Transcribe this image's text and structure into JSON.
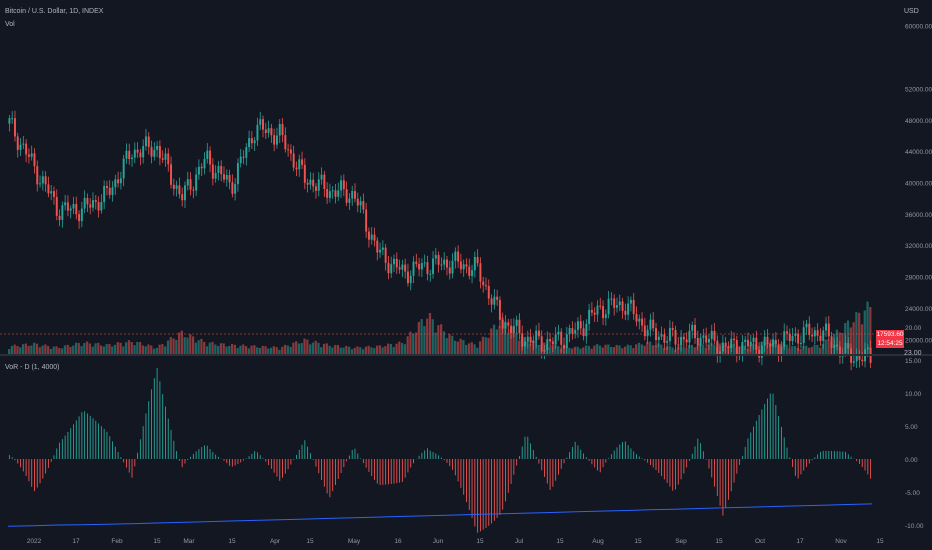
{
  "header": {
    "symbol_line": "Bitcoin / U.S. Dollar, 1D, INDEX",
    "indicator_label": "Vol"
  },
  "price_axis": {
    "currency": "USD",
    "labels": [
      "60000.00",
      "52000.00",
      "48000.00",
      "44000.00",
      "40000.00",
      "36000.00",
      "32000.00",
      "28000.00",
      "24000.00",
      "20000.00"
    ]
  },
  "last_price": {
    "price": "17593.60",
    "countdown": "12:54:25"
  },
  "divider_label": "23.00",
  "sub_pane": {
    "title": "VoR - D (1, 4000)",
    "labels": [
      "20.00",
      "15.00",
      "10.00",
      "5.00",
      "0.00",
      "-5.00",
      "-10.00",
      "-15.00"
    ]
  },
  "time_axis": {
    "labels": [
      "2022",
      "17",
      "Feb",
      "15",
      "Mar",
      "15",
      "Apr",
      "15",
      "May",
      "16",
      "Jun",
      "15",
      "Jul",
      "15",
      "Aug",
      "15",
      "Sep",
      "15",
      "Oct",
      "17",
      "Nov",
      "15"
    ]
  },
  "colors": {
    "up": "#26a69a",
    "down": "#ef5350",
    "line": "#2962ff",
    "bg": "#131722"
  },
  "chart_data": [
    {
      "type": "candlestick",
      "title": "Bitcoin / U.S. Dollar, 1D, INDEX",
      "ylabel": "USD",
      "ylim": [
        18000,
        62000
      ],
      "x": [
        "2022-01-01",
        "2022-01-10",
        "2022-01-20",
        "2022-01-24",
        "2022-02-01",
        "2022-02-10",
        "2022-02-15",
        "2022-02-24",
        "2022-03-01",
        "2022-03-15",
        "2022-03-28",
        "2022-04-04",
        "2022-04-15",
        "2022-04-25",
        "2022-05-01",
        "2022-05-09",
        "2022-05-12",
        "2022-05-20",
        "2022-06-01",
        "2022-06-10",
        "2022-06-13",
        "2022-06-18",
        "2022-07-01",
        "2022-07-15",
        "2022-07-29",
        "2022-08-10",
        "2022-08-19",
        "2022-09-01",
        "2022-09-13",
        "2022-09-20",
        "2022-10-01",
        "2022-10-15",
        "2022-10-25",
        "2022-11-05",
        "2022-11-09",
        "2022-11-14"
      ],
      "close": [
        47500,
        42000,
        36500,
        36600,
        38500,
        44000,
        44500,
        38000,
        43000,
        39500,
        47000,
        46000,
        40500,
        39000,
        38500,
        31000,
        28500,
        29500,
        29800,
        29000,
        22500,
        20000,
        19500,
        21000,
        24000,
        24500,
        21000,
        20000,
        20500,
        19000,
        19300,
        19200,
        20500,
        21000,
        18000,
        17594
      ]
    },
    {
      "type": "bar",
      "title": "Vol",
      "description_series": "daily volume, 0-1 relative",
      "values": [
        0.35,
        0.45,
        0.3,
        0.5,
        0.4,
        0.55,
        0.3,
        0.9,
        0.5,
        0.4,
        0.35,
        0.3,
        0.6,
        0.4,
        0.3,
        0.35,
        0.5,
        1.6,
        0.7,
        0.4,
        1.4,
        0.6,
        0.4,
        0.3,
        0.4,
        0.35,
        0.5,
        0.3,
        0.4,
        0.45,
        0.35,
        0.6,
        0.3,
        0.4,
        1.2,
        2.0
      ]
    },
    {
      "type": "bar",
      "title": "VoR - D (1, 4000)",
      "ylim": [
        -18,
        22
      ],
      "values": [
        2,
        -9,
        3,
        8,
        4,
        -3,
        16,
        -2,
        5,
        -3,
        2,
        -4,
        3,
        -6,
        2,
        -5,
        -6,
        5,
        -3,
        -15,
        -9,
        4,
        -5,
        3,
        -3,
        6,
        -2,
        -8,
        4,
        -9,
        3,
        11,
        -4,
        2,
        3,
        -6
      ],
      "line": [
        -10.2,
        -10.1,
        -10.0,
        -9.95,
        -9.9,
        -9.8,
        -9.7,
        -9.6,
        -9.5,
        -9.4,
        -9.3,
        -9.2,
        -9.1,
        -9.0,
        -8.9,
        -8.8,
        -8.7,
        -8.6,
        -8.5,
        -8.4,
        -8.3,
        -8.2,
        -8.1,
        -8.0,
        -7.9,
        -7.8,
        -7.7,
        -7.6,
        -7.5,
        -7.4,
        -7.3,
        -7.2,
        -7.1,
        -7.0,
        -6.9,
        -6.8
      ]
    }
  ]
}
